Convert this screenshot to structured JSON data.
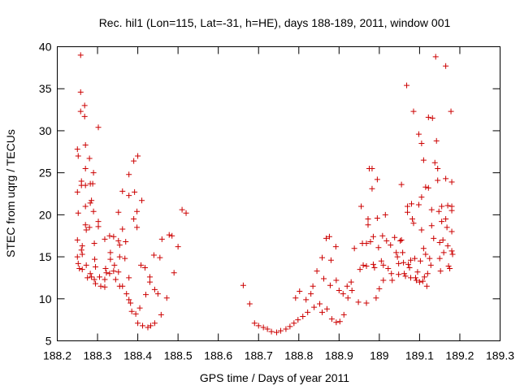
{
  "chart_data": {
    "type": "scatter",
    "title": "Rec. hil1 (Lon=115, Lat=-31, h=HE), days 188-189, 2011, window 001",
    "xlabel": "GPS time / Days of year 2011",
    "ylabel": "STEC from uqrg / TECUs",
    "xlim": [
      188.2,
      189.3
    ],
    "ylim": [
      5,
      40
    ],
    "xticks": [
      188.2,
      188.3,
      188.4,
      188.5,
      188.6,
      188.7,
      188.8,
      188.9,
      189.0,
      189.1,
      189.2,
      189.3
    ],
    "xtick_labels": [
      "188.2",
      "188.3",
      "188.4",
      "188.5",
      "188.6",
      "188.7",
      "188.8",
      "188.9",
      "189",
      "189.1",
      "189.2",
      "189.3"
    ],
    "yticks": [
      5,
      10,
      15,
      20,
      25,
      30,
      35,
      40
    ],
    "ytick_labels": [
      "5",
      "10",
      "15",
      "20",
      "25",
      "30",
      "35",
      "40"
    ],
    "marker": "+",
    "color": "#cc0000",
    "grid": false,
    "series": [
      {
        "name": "STEC",
        "points": [
          [
            188.25,
            27.8
          ],
          [
            188.252,
            27.0
          ],
          [
            188.25,
            22.7
          ],
          [
            188.252,
            20.2
          ],
          [
            188.25,
            17.0
          ],
          [
            188.25,
            15.0
          ],
          [
            188.252,
            14.2
          ],
          [
            188.255,
            13.6
          ],
          [
            188.258,
            39.0
          ],
          [
            188.258,
            34.6
          ],
          [
            188.258,
            32.3
          ],
          [
            188.26,
            24.0
          ],
          [
            188.26,
            23.5
          ],
          [
            188.262,
            16.3
          ],
          [
            188.26,
            15.8
          ],
          [
            188.262,
            15.3
          ],
          [
            188.262,
            13.5
          ],
          [
            188.268,
            33.0
          ],
          [
            188.268,
            31.7
          ],
          [
            188.27,
            28.3
          ],
          [
            188.27,
            25.5
          ],
          [
            188.27,
            23.5
          ],
          [
            188.27,
            21.0
          ],
          [
            188.27,
            18.8
          ],
          [
            188.272,
            18.2
          ],
          [
            188.272,
            14.0
          ],
          [
            188.275,
            12.5
          ],
          [
            188.28,
            26.7
          ],
          [
            188.282,
            23.7
          ],
          [
            188.282,
            21.4
          ],
          [
            188.28,
            18.5
          ],
          [
            188.285,
            21.7
          ],
          [
            188.282,
            13.0
          ],
          [
            188.285,
            12.6
          ],
          [
            188.288,
            23.7
          ],
          [
            188.29,
            25.0
          ],
          [
            188.29,
            20.4
          ],
          [
            188.292,
            16.6
          ],
          [
            188.293,
            14.7
          ],
          [
            188.295,
            13.8
          ],
          [
            188.292,
            12.3
          ],
          [
            188.295,
            11.8
          ],
          [
            188.302,
            30.4
          ],
          [
            188.302,
            19.2
          ],
          [
            188.302,
            18.6
          ],
          [
            188.305,
            12.6
          ],
          [
            188.308,
            11.5
          ],
          [
            188.318,
            17.1
          ],
          [
            188.32,
            13.6
          ],
          [
            188.322,
            13.1
          ],
          [
            188.318,
            12.3
          ],
          [
            188.318,
            11.4
          ],
          [
            188.33,
            17.5
          ],
          [
            188.332,
            15.5
          ],
          [
            188.332,
            14.7
          ],
          [
            188.33,
            13.0
          ],
          [
            188.34,
            17.4
          ],
          [
            188.342,
            14.0
          ],
          [
            188.34,
            13.3
          ],
          [
            188.345,
            12.3
          ],
          [
            188.352,
            20.3
          ],
          [
            188.352,
            16.9
          ],
          [
            188.355,
            16.4
          ],
          [
            188.355,
            15.0
          ],
          [
            188.352,
            13.2
          ],
          [
            188.355,
            11.5
          ],
          [
            188.362,
            22.8
          ],
          [
            188.362,
            18.3
          ],
          [
            188.362,
            11.5
          ],
          [
            188.37,
            16.8
          ],
          [
            188.368,
            14.8
          ],
          [
            188.372,
            10.6
          ],
          [
            188.378,
            24.8
          ],
          [
            188.378,
            22.3
          ],
          [
            188.378,
            12.5
          ],
          [
            188.378,
            9.9
          ],
          [
            188.382,
            9.5
          ],
          [
            188.385,
            8.5
          ],
          [
            188.39,
            26.4
          ],
          [
            188.392,
            22.7
          ],
          [
            188.39,
            19.5
          ],
          [
            188.395,
            8.2
          ],
          [
            188.4,
            27.0
          ],
          [
            188.398,
            20.4
          ],
          [
            188.398,
            18.5
          ],
          [
            188.4,
            7.1
          ],
          [
            188.41,
            21.7
          ],
          [
            188.408,
            14.0
          ],
          [
            188.405,
            8.9
          ],
          [
            188.412,
            6.8
          ],
          [
            188.418,
            13.7
          ],
          [
            188.42,
            10.5
          ],
          [
            188.425,
            6.6
          ],
          [
            188.43,
            12.6
          ],
          [
            188.43,
            12.0
          ],
          [
            188.432,
            6.8
          ],
          [
            188.44,
            15.2
          ],
          [
            188.442,
            11.1
          ],
          [
            188.442,
            7.1
          ],
          [
            188.45,
            10.6
          ],
          [
            188.455,
            14.9
          ],
          [
            188.458,
            8.1
          ],
          [
            188.46,
            17.1
          ],
          [
            188.472,
            10.1
          ],
          [
            188.478,
            17.6
          ],
          [
            188.485,
            17.5
          ],
          [
            188.49,
            13.1
          ],
          [
            188.5,
            16.2
          ],
          [
            188.51,
            20.6
          ],
          [
            188.52,
            20.2
          ],
          [
            188.662,
            11.6
          ],
          [
            188.678,
            9.4
          ],
          [
            188.69,
            7.1
          ],
          [
            188.7,
            6.8
          ],
          [
            188.712,
            6.6
          ],
          [
            188.722,
            6.4
          ],
          [
            188.732,
            6.1
          ],
          [
            188.745,
            6.0
          ],
          [
            188.755,
            6.2
          ],
          [
            188.768,
            6.4
          ],
          [
            188.778,
            6.7
          ],
          [
            188.788,
            7.1
          ],
          [
            188.792,
            10.1
          ],
          [
            188.798,
            7.5
          ],
          [
            188.802,
            10.9
          ],
          [
            188.81,
            7.9
          ],
          [
            188.818,
            9.9
          ],
          [
            188.822,
            8.4
          ],
          [
            188.83,
            10.6
          ],
          [
            188.835,
            11.5
          ],
          [
            188.838,
            9.0
          ],
          [
            188.845,
            13.3
          ],
          [
            188.852,
            9.4
          ],
          [
            188.858,
            14.9
          ],
          [
            188.858,
            8.4
          ],
          [
            188.862,
            12.4
          ],
          [
            188.868,
            17.2
          ],
          [
            188.87,
            8.8
          ],
          [
            188.876,
            17.4
          ],
          [
            188.878,
            11.6
          ],
          [
            188.88,
            14.6
          ],
          [
            188.882,
            7.6
          ],
          [
            188.892,
            16.2
          ],
          [
            188.893,
            12.2
          ],
          [
            188.893,
            7.2
          ],
          [
            188.9,
            11.0
          ],
          [
            188.902,
            7.3
          ],
          [
            188.91,
            10.6
          ],
          [
            188.912,
            8.1
          ],
          [
            188.92,
            11.5
          ],
          [
            188.922,
            10.1
          ],
          [
            188.93,
            12.0
          ],
          [
            188.932,
            11.0
          ],
          [
            188.938,
            16.0
          ],
          [
            188.948,
            9.6
          ],
          [
            188.952,
            13.5
          ],
          [
            188.955,
            21.0
          ],
          [
            188.958,
            16.6
          ],
          [
            188.96,
            14.0
          ],
          [
            188.968,
            9.5
          ],
          [
            188.968,
            13.9
          ],
          [
            188.968,
            16.6
          ],
          [
            188.972,
            19.5
          ],
          [
            188.972,
            18.8
          ],
          [
            188.975,
            25.5
          ],
          [
            188.978,
            16.8
          ],
          [
            188.982,
            25.5
          ],
          [
            188.982,
            23.1
          ],
          [
            188.985,
            17.4
          ],
          [
            188.985,
            14.1
          ],
          [
            188.988,
            13.7
          ],
          [
            188.992,
            10.1
          ],
          [
            188.995,
            24.2
          ],
          [
            188.995,
            19.6
          ],
          [
            188.998,
            16.1
          ],
          [
            189.0,
            11.2
          ],
          [
            189.005,
            14.5
          ],
          [
            189.008,
            17.5
          ],
          [
            189.01,
            14.0
          ],
          [
            189.01,
            12.2
          ],
          [
            189.015,
            20.0
          ],
          [
            189.018,
            16.9
          ],
          [
            189.022,
            13.6
          ],
          [
            189.028,
            16.4
          ],
          [
            189.03,
            13.0
          ],
          [
            189.032,
            12.2
          ],
          [
            189.038,
            17.3
          ],
          [
            189.042,
            15.5
          ],
          [
            189.045,
            15.0
          ],
          [
            189.048,
            14.2
          ],
          [
            189.048,
            12.9
          ],
          [
            189.052,
            16.9
          ],
          [
            189.055,
            17.0
          ],
          [
            189.055,
            23.6
          ],
          [
            189.058,
            15.5
          ],
          [
            189.06,
            14.3
          ],
          [
            189.062,
            13.0
          ],
          [
            189.065,
            12.7
          ],
          [
            189.068,
            35.4
          ],
          [
            189.07,
            21.0
          ],
          [
            189.07,
            20.3
          ],
          [
            189.072,
            14.1
          ],
          [
            189.075,
            13.7
          ],
          [
            189.078,
            14.6
          ],
          [
            189.078,
            12.5
          ],
          [
            189.08,
            21.3
          ],
          [
            189.082,
            19.5
          ],
          [
            189.085,
            32.3
          ],
          [
            189.085,
            19.0
          ],
          [
            189.088,
            14.8
          ],
          [
            189.09,
            12.5
          ],
          [
            189.092,
            12.2
          ],
          [
            189.095,
            13.2
          ],
          [
            189.098,
            29.6
          ],
          [
            189.098,
            21.2
          ],
          [
            189.1,
            12.0
          ],
          [
            189.102,
            14.5
          ],
          [
            189.105,
            28.5
          ],
          [
            189.105,
            22.1
          ],
          [
            189.105,
            18.2
          ],
          [
            189.108,
            12.1
          ],
          [
            189.11,
            26.5
          ],
          [
            189.11,
            16.0
          ],
          [
            189.112,
            12.6
          ],
          [
            189.115,
            23.3
          ],
          [
            189.115,
            15.3
          ],
          [
            189.118,
            11.5
          ],
          [
            189.12,
            13.0
          ],
          [
            189.122,
            31.6
          ],
          [
            189.122,
            23.2
          ],
          [
            189.125,
            14.8
          ],
          [
            189.128,
            14.0
          ],
          [
            189.13,
            20.6
          ],
          [
            189.13,
            18.7
          ],
          [
            189.132,
            31.5
          ],
          [
            189.135,
            17.2
          ],
          [
            189.138,
            26.2
          ],
          [
            189.14,
            38.8
          ],
          [
            189.142,
            28.8
          ],
          [
            189.145,
            25.5
          ],
          [
            189.145,
            24.1
          ],
          [
            189.148,
            20.4
          ],
          [
            189.15,
            16.7
          ],
          [
            189.15,
            14.8
          ],
          [
            189.152,
            13.3
          ],
          [
            189.155,
            21.0
          ],
          [
            189.155,
            19.2
          ],
          [
            189.158,
            17.0
          ],
          [
            189.16,
            15.5
          ],
          [
            189.165,
            37.7
          ],
          [
            189.165,
            24.3
          ],
          [
            189.165,
            19.5
          ],
          [
            189.168,
            18.5
          ],
          [
            189.17,
            21.1
          ],
          [
            189.17,
            16.3
          ],
          [
            189.172,
            13.9
          ],
          [
            189.178,
            32.3
          ],
          [
            189.18,
            23.9
          ],
          [
            189.18,
            21.0
          ],
          [
            189.18,
            20.5
          ],
          [
            189.18,
            18.0
          ],
          [
            189.18,
            15.7
          ],
          [
            189.182,
            15.3
          ],
          [
            189.175,
            13.6
          ]
        ]
      }
    ]
  }
}
